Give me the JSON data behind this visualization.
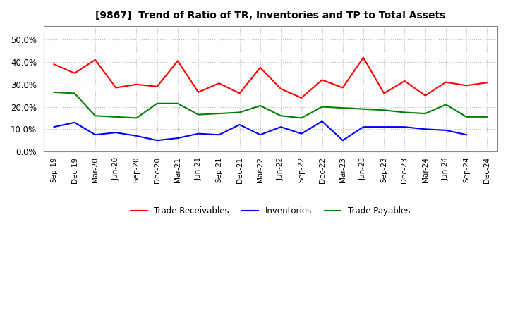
{
  "title": "[9867]  Trend of Ratio of TR, Inventories and TP to Total Assets",
  "x_labels": [
    "Sep-19",
    "Dec-19",
    "Mar-20",
    "Jun-20",
    "Sep-20",
    "Dec-20",
    "Mar-21",
    "Jun-21",
    "Sep-21",
    "Dec-21",
    "Mar-22",
    "Jun-22",
    "Sep-22",
    "Dec-22",
    "Mar-23",
    "Jun-23",
    "Sep-23",
    "Dec-23",
    "Mar-24",
    "Jun-24",
    "Sep-24",
    "Dec-24"
  ],
  "trade_receivables": [
    0.39,
    0.35,
    0.41,
    0.285,
    0.3,
    0.29,
    0.405,
    0.265,
    0.305,
    0.26,
    0.375,
    0.28,
    0.24,
    0.32,
    0.285,
    0.42,
    0.26,
    0.315,
    0.25,
    0.31,
    0.295,
    0.308
  ],
  "inventories": [
    0.11,
    0.13,
    0.075,
    0.085,
    0.07,
    0.05,
    0.06,
    0.08,
    0.075,
    0.12,
    0.075,
    0.11,
    0.08,
    0.135,
    0.05,
    0.11,
    0.11,
    0.11,
    0.1,
    0.095,
    0.075,
    null
  ],
  "trade_payables": [
    0.265,
    0.26,
    0.16,
    0.155,
    0.15,
    0.215,
    0.215,
    0.165,
    0.17,
    0.175,
    0.205,
    0.16,
    0.15,
    0.2,
    0.195,
    0.19,
    0.185,
    0.175,
    0.17,
    0.21,
    0.155,
    0.155
  ],
  "line_color_tr": "#ff0000",
  "line_color_inv": "#0000ff",
  "line_color_tp": "#008000",
  "ylim": [
    0.0,
    0.56
  ],
  "yticks": [
    0.0,
    0.1,
    0.2,
    0.3,
    0.4,
    0.5
  ],
  "background_color": "#ffffff",
  "grid_color": "#aaaaaa",
  "legend_labels": [
    "Trade Receivables",
    "Inventories",
    "Trade Payables"
  ]
}
